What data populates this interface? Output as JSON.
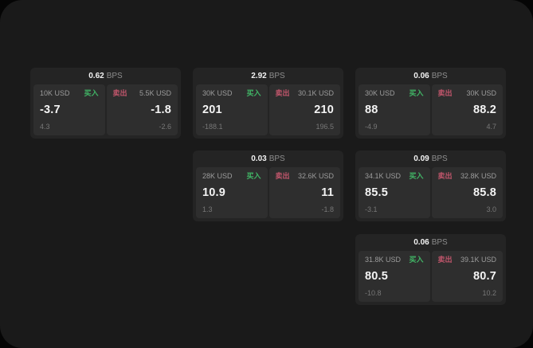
{
  "labels": {
    "bps_unit": "BPS",
    "buy": "买入",
    "sell": "卖出"
  },
  "colors": {
    "buy_green": "#41b566",
    "sell_red": "#c2566c",
    "panel_bg": "#2e2e2e"
  },
  "cards": [
    {
      "bps": "0.62",
      "buy": {
        "amount": "10K USD",
        "value": "-3.7",
        "sub": "4.3"
      },
      "sell": {
        "amount": "5.5K USD",
        "value": "-1.8",
        "sub": "-2.6"
      }
    },
    {
      "bps": "2.92",
      "buy": {
        "amount": "30K USD",
        "value": "201",
        "sub": "-188.1"
      },
      "sell": {
        "amount": "30.1K USD",
        "value": "210",
        "sub": "196.5"
      }
    },
    {
      "bps": "0.06",
      "buy": {
        "amount": "30K USD",
        "value": "88",
        "sub": "-4.9"
      },
      "sell": {
        "amount": "30K USD",
        "value": "88.2",
        "sub": "4.7"
      }
    },
    {
      "bps": "0.03",
      "buy": {
        "amount": "28K USD",
        "value": "10.9",
        "sub": "1.3"
      },
      "sell": {
        "amount": "32.6K USD",
        "value": "11",
        "sub": "-1.8"
      }
    },
    {
      "bps": "0.09",
      "buy": {
        "amount": "34.1K USD",
        "value": "85.5",
        "sub": "-3.1"
      },
      "sell": {
        "amount": "32.8K USD",
        "value": "85.8",
        "sub": "3.0"
      }
    },
    {
      "bps": "0.06",
      "buy": {
        "amount": "31.8K USD",
        "value": "80.5",
        "sub": "-10.8"
      },
      "sell": {
        "amount": "39.1K USD",
        "value": "80.7",
        "sub": "10.2"
      }
    }
  ]
}
